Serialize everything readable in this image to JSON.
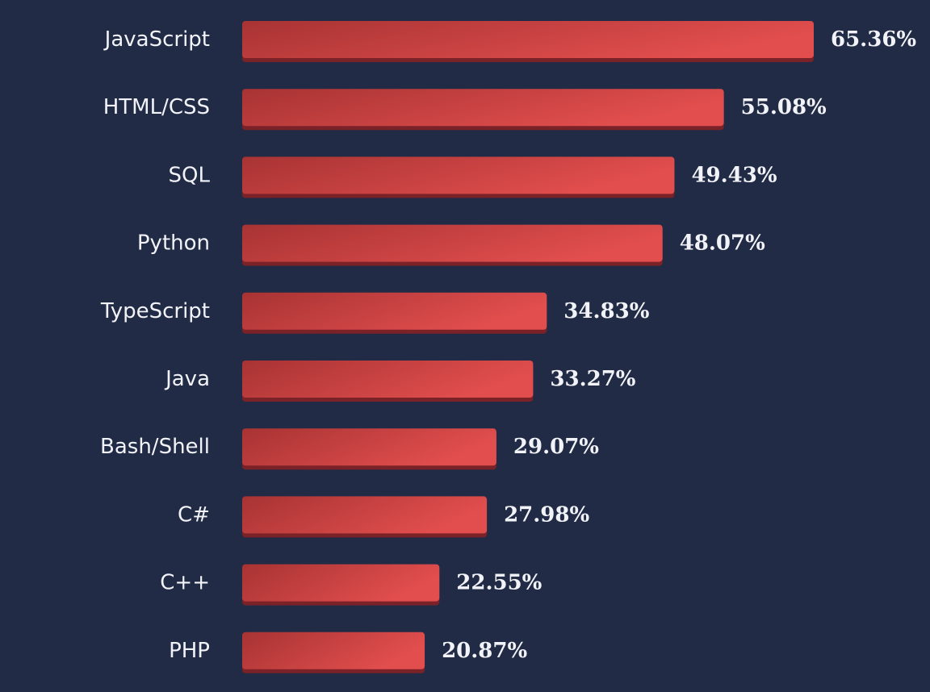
{
  "colors": {
    "background": "#222b45",
    "bar_start": "#a83333",
    "bar_end": "#e24e4e",
    "bar_shadow": "#7a2228",
    "text": "#f1f3f8"
  },
  "chart_data": {
    "type": "bar",
    "orientation": "horizontal",
    "categories": [
      "JavaScript",
      "HTML/CSS",
      "SQL",
      "Python",
      "TypeScript",
      "Java",
      "Bash/Shell",
      "C#",
      "C++",
      "PHP"
    ],
    "values": [
      65.36,
      55.08,
      49.43,
      48.07,
      34.83,
      33.27,
      29.07,
      27.98,
      22.55,
      20.87
    ],
    "value_labels": [
      "65.36%",
      "55.08%",
      "49.43%",
      "48.07%",
      "34.83%",
      "33.27%",
      "29.07%",
      "27.98%",
      "22.55%",
      "20.87%"
    ],
    "unit": "%",
    "title": "",
    "xlabel": "",
    "ylabel": "",
    "xlim": [
      0,
      65.36
    ],
    "grid": false,
    "legend": "none"
  }
}
